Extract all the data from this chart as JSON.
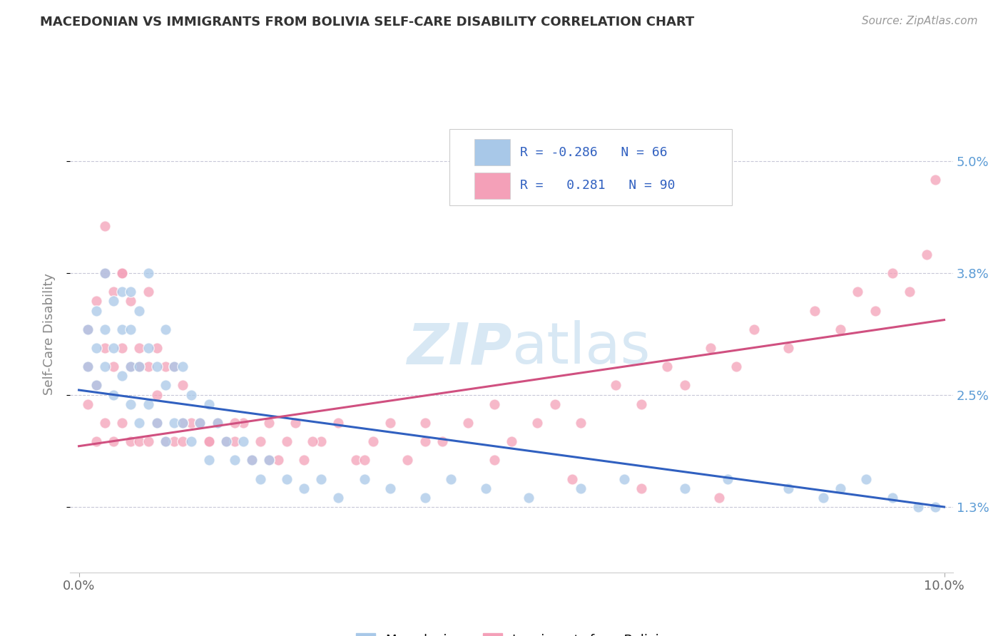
{
  "title": "MACEDONIAN VS IMMIGRANTS FROM BOLIVIA SELF-CARE DISABILITY CORRELATION CHART",
  "source": "Source: ZipAtlas.com",
  "ylabel": "Self-Care Disability",
  "ytick_labels": [
    "1.3%",
    "2.5%",
    "3.8%",
    "5.0%"
  ],
  "ytick_values": [
    0.013,
    0.025,
    0.038,
    0.05
  ],
  "xtick_labels": [
    "0.0%",
    "10.0%"
  ],
  "xtick_values": [
    0.0,
    0.1
  ],
  "color_macedonian": "#a8c8e8",
  "color_bolivia": "#f4a0b8",
  "line_color_macedonian": "#3060c0",
  "line_color_bolivia": "#d05080",
  "background_color": "#ffffff",
  "grid_color": "#c8c8d8",
  "watermark_color": "#c8dff0",
  "mac_line_start_y": 0.0255,
  "mac_line_end_y": 0.013,
  "bol_line_start_y": 0.0195,
  "bol_line_end_y": 0.033,
  "macedonian_x": [
    0.001,
    0.001,
    0.002,
    0.002,
    0.002,
    0.003,
    0.003,
    0.003,
    0.004,
    0.004,
    0.004,
    0.005,
    0.005,
    0.005,
    0.006,
    0.006,
    0.006,
    0.006,
    0.007,
    0.007,
    0.007,
    0.008,
    0.008,
    0.008,
    0.009,
    0.009,
    0.01,
    0.01,
    0.01,
    0.011,
    0.011,
    0.012,
    0.012,
    0.013,
    0.013,
    0.014,
    0.015,
    0.015,
    0.016,
    0.017,
    0.018,
    0.019,
    0.02,
    0.021,
    0.022,
    0.024,
    0.026,
    0.028,
    0.03,
    0.033,
    0.036,
    0.04,
    0.043,
    0.047,
    0.052,
    0.058,
    0.063,
    0.07,
    0.075,
    0.082,
    0.086,
    0.088,
    0.091,
    0.094,
    0.097,
    0.099
  ],
  "macedonian_y": [
    0.028,
    0.032,
    0.026,
    0.03,
    0.034,
    0.028,
    0.032,
    0.038,
    0.025,
    0.03,
    0.035,
    0.027,
    0.032,
    0.036,
    0.024,
    0.028,
    0.032,
    0.036,
    0.022,
    0.028,
    0.034,
    0.024,
    0.03,
    0.038,
    0.022,
    0.028,
    0.02,
    0.026,
    0.032,
    0.022,
    0.028,
    0.022,
    0.028,
    0.02,
    0.025,
    0.022,
    0.018,
    0.024,
    0.022,
    0.02,
    0.018,
    0.02,
    0.018,
    0.016,
    0.018,
    0.016,
    0.015,
    0.016,
    0.014,
    0.016,
    0.015,
    0.014,
    0.016,
    0.015,
    0.014,
    0.015,
    0.016,
    0.015,
    0.016,
    0.015,
    0.014,
    0.015,
    0.016,
    0.014,
    0.013,
    0.013
  ],
  "bolivia_x": [
    0.001,
    0.001,
    0.001,
    0.002,
    0.002,
    0.002,
    0.003,
    0.003,
    0.003,
    0.004,
    0.004,
    0.004,
    0.005,
    0.005,
    0.005,
    0.006,
    0.006,
    0.006,
    0.007,
    0.007,
    0.008,
    0.008,
    0.008,
    0.009,
    0.009,
    0.01,
    0.01,
    0.011,
    0.011,
    0.012,
    0.012,
    0.013,
    0.014,
    0.015,
    0.016,
    0.017,
    0.018,
    0.019,
    0.02,
    0.021,
    0.022,
    0.023,
    0.024,
    0.025,
    0.026,
    0.028,
    0.03,
    0.032,
    0.034,
    0.036,
    0.038,
    0.04,
    0.042,
    0.045,
    0.048,
    0.05,
    0.053,
    0.055,
    0.058,
    0.062,
    0.065,
    0.068,
    0.07,
    0.073,
    0.076,
    0.078,
    0.082,
    0.085,
    0.088,
    0.09,
    0.092,
    0.094,
    0.096,
    0.098,
    0.003,
    0.005,
    0.007,
    0.009,
    0.012,
    0.015,
    0.018,
    0.022,
    0.027,
    0.033,
    0.04,
    0.048,
    0.057,
    0.065,
    0.074,
    0.099
  ],
  "bolivia_y": [
    0.024,
    0.028,
    0.032,
    0.02,
    0.026,
    0.035,
    0.022,
    0.03,
    0.038,
    0.02,
    0.028,
    0.036,
    0.022,
    0.03,
    0.038,
    0.02,
    0.028,
    0.035,
    0.02,
    0.03,
    0.02,
    0.028,
    0.036,
    0.022,
    0.03,
    0.02,
    0.028,
    0.02,
    0.028,
    0.02,
    0.026,
    0.022,
    0.022,
    0.02,
    0.022,
    0.02,
    0.02,
    0.022,
    0.018,
    0.02,
    0.022,
    0.018,
    0.02,
    0.022,
    0.018,
    0.02,
    0.022,
    0.018,
    0.02,
    0.022,
    0.018,
    0.022,
    0.02,
    0.022,
    0.024,
    0.02,
    0.022,
    0.024,
    0.022,
    0.026,
    0.024,
    0.028,
    0.026,
    0.03,
    0.028,
    0.032,
    0.03,
    0.034,
    0.032,
    0.036,
    0.034,
    0.038,
    0.036,
    0.04,
    0.043,
    0.038,
    0.028,
    0.025,
    0.022,
    0.02,
    0.022,
    0.018,
    0.02,
    0.018,
    0.02,
    0.018,
    0.016,
    0.015,
    0.014,
    0.048
  ]
}
